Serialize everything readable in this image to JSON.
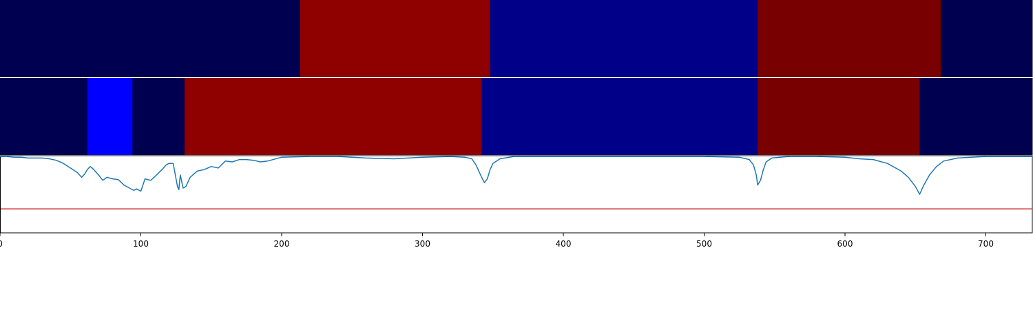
{
  "chart_data": [
    {
      "type": "heatmap",
      "xlim": [
        0,
        733
      ],
      "colors": {
        "dark": "#000050",
        "red": "#8f0000",
        "blue": "#000088",
        "maroon": "#790000"
      },
      "segments": [
        {
          "start": 0,
          "end": 213,
          "color": "dark"
        },
        {
          "start": 213,
          "end": 348,
          "color": "red"
        },
        {
          "start": 348,
          "end": 538,
          "color": "blue"
        },
        {
          "start": 538,
          "end": 668,
          "color": "maroon"
        },
        {
          "start": 668,
          "end": 733,
          "color": "dark"
        }
      ]
    },
    {
      "type": "heatmap",
      "xlim": [
        0,
        733
      ],
      "colors": {
        "dark": "#000050",
        "bright-blue": "#0000ff",
        "red": "#8f0000",
        "blue": "#000088",
        "maroon": "#790000"
      },
      "segments": [
        {
          "start": 0,
          "end": 62,
          "color": "dark"
        },
        {
          "start": 62,
          "end": 94,
          "color": "bright-blue"
        },
        {
          "start": 94,
          "end": 131,
          "color": "dark"
        },
        {
          "start": 131,
          "end": 342,
          "color": "red"
        },
        {
          "start": 342,
          "end": 538,
          "color": "blue"
        },
        {
          "start": 538,
          "end": 653,
          "color": "maroon"
        },
        {
          "start": 653,
          "end": 733,
          "color": "dark"
        }
      ]
    },
    {
      "type": "line",
      "xlim": [
        0,
        733
      ],
      "ylim": [
        0,
        1
      ],
      "grid": false,
      "series_color": "#1f77b4",
      "threshold": {
        "y": 0.31,
        "color": "#d62728"
      },
      "x": [
        0,
        5,
        10,
        15,
        20,
        30,
        35,
        40,
        45,
        50,
        55,
        58,
        60,
        62,
        64,
        66,
        70,
        73,
        76,
        80,
        84,
        88,
        92,
        95,
        97,
        100,
        103,
        107,
        110,
        115,
        118,
        120,
        123,
        126,
        127,
        128,
        130,
        132,
        135,
        140,
        145,
        150,
        155,
        160,
        165,
        170,
        175,
        180,
        185,
        190,
        200,
        220,
        240,
        260,
        280,
        300,
        320,
        330,
        335,
        338,
        340,
        342,
        344,
        346,
        348,
        350,
        355,
        365,
        400,
        450,
        500,
        525,
        532,
        535,
        537,
        538,
        540,
        542,
        544,
        548,
        560,
        580,
        600,
        610,
        620,
        630,
        640,
        645,
        650,
        653,
        656,
        660,
        665,
        670,
        680,
        700,
        733
      ],
      "y": [
        0.99,
        0.99,
        0.98,
        0.98,
        0.97,
        0.97,
        0.96,
        0.94,
        0.9,
        0.84,
        0.78,
        0.72,
        0.76,
        0.82,
        0.86,
        0.83,
        0.75,
        0.68,
        0.72,
        0.7,
        0.69,
        0.62,
        0.58,
        0.55,
        0.57,
        0.54,
        0.7,
        0.68,
        0.73,
        0.82,
        0.88,
        0.9,
        0.9,
        0.6,
        0.56,
        0.75,
        0.58,
        0.6,
        0.72,
        0.8,
        0.82,
        0.86,
        0.84,
        0.93,
        0.92,
        0.95,
        0.95,
        0.94,
        0.92,
        0.93,
        0.98,
        0.99,
        0.99,
        0.97,
        0.96,
        0.98,
        0.99,
        0.98,
        0.96,
        0.88,
        0.8,
        0.72,
        0.65,
        0.7,
        0.82,
        0.9,
        0.96,
        0.99,
        0.99,
        0.99,
        0.99,
        0.98,
        0.95,
        0.88,
        0.75,
        0.62,
        0.68,
        0.82,
        0.92,
        0.97,
        0.99,
        0.99,
        0.98,
        0.96,
        0.95,
        0.9,
        0.8,
        0.72,
        0.6,
        0.5,
        0.62,
        0.75,
        0.86,
        0.93,
        0.97,
        0.99,
        0.99
      ]
    }
  ],
  "x_axis": {
    "ticks": [
      0,
      100,
      200,
      300,
      400,
      500,
      600,
      700
    ],
    "tick_labels": [
      "0",
      "100",
      "200",
      "300",
      "400",
      "500",
      "600",
      "700"
    ]
  }
}
